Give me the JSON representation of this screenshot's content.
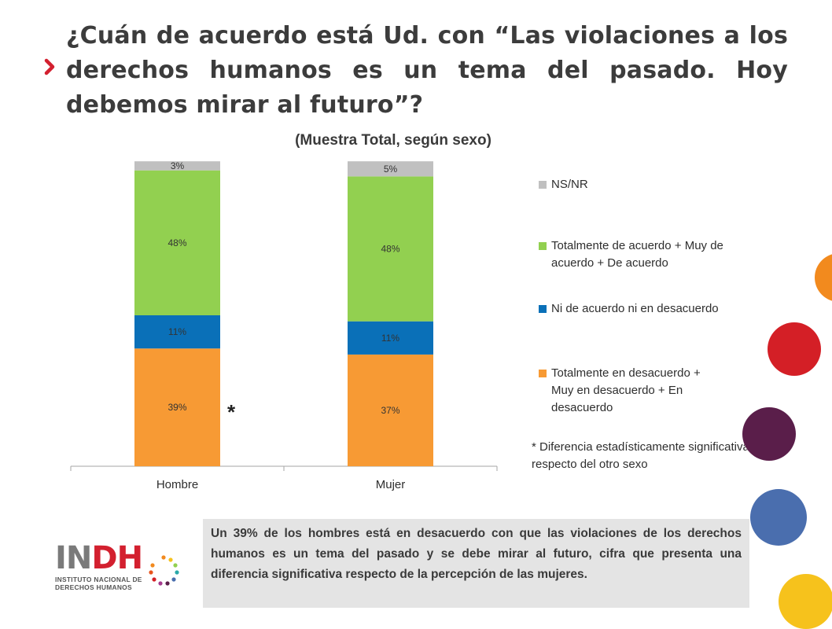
{
  "title": "¿Cuán de acuerdo está Ud. con “Las violaciones a los derechos humanos es un tema del pasado. Hoy debemos mirar al futuro”?",
  "subtitle": "(Muestra Total, según sexo)",
  "chart_data": {
    "type": "bar",
    "stacked": true,
    "categories": [
      "Hombre",
      "Mujer"
    ],
    "series": [
      {
        "name": "Totalmente en desacuerdo + Muy en desacuerdo + En desacuerdo",
        "values": [
          39,
          37
        ],
        "labels": [
          "39%",
          "37%"
        ],
        "color": "#f79a34"
      },
      {
        "name": "Ni de acuerdo ni en desacuerdo",
        "values": [
          11,
          11
        ],
        "labels": [
          "11%",
          "11%"
        ],
        "color": "#0a70b8"
      },
      {
        "name": "Totalmente de acuerdo + Muy de acuerdo + De acuerdo",
        "values": [
          48,
          48
        ],
        "labels": [
          "48%",
          "48%"
        ],
        "color": "#92d050"
      },
      {
        "name": "NS/NR",
        "values": [
          3,
          5
        ],
        "labels": [
          "3%",
          "5%"
        ],
        "color": "#c0c0c0"
      }
    ],
    "ylim": [
      0,
      100
    ],
    "significance_marker": {
      "category": "Hombre",
      "text": "*"
    },
    "legend_position": "right"
  },
  "legend": [
    {
      "label": "NS/NR",
      "color": "#c0c0c0"
    },
    {
      "label": "Totalmente de acuerdo + Muy de acuerdo + De acuerdo",
      "color": "#92d050"
    },
    {
      "label": "Ni de acuerdo ni en desacuerdo",
      "color": "#0a70b8"
    },
    {
      "label": "Totalmente en desacuerdo + Muy en desacuerdo + En desacuerdo",
      "color": "#f79a34"
    }
  ],
  "footnote": "* Diferencia estadísticamente significativa respecto del otro sexo",
  "summary": "Un 39% de los hombres está en desacuerdo con que las violaciones de los derechos humanos es un tema del pasado y se debe mirar al futuro, cifra que presenta una diferencia significativa respecto de la percepción de las mujeres.",
  "logo": {
    "mark_in": "IN",
    "mark_dh": "DH",
    "line1": "INSTITUTO NACIONAL DE",
    "line2": "DERECHOS HUMANOS"
  },
  "decor_colors": [
    "#f28a1e",
    "#d41f26",
    "#5a1e4a",
    "#4a6eae",
    "#f6c21c"
  ]
}
